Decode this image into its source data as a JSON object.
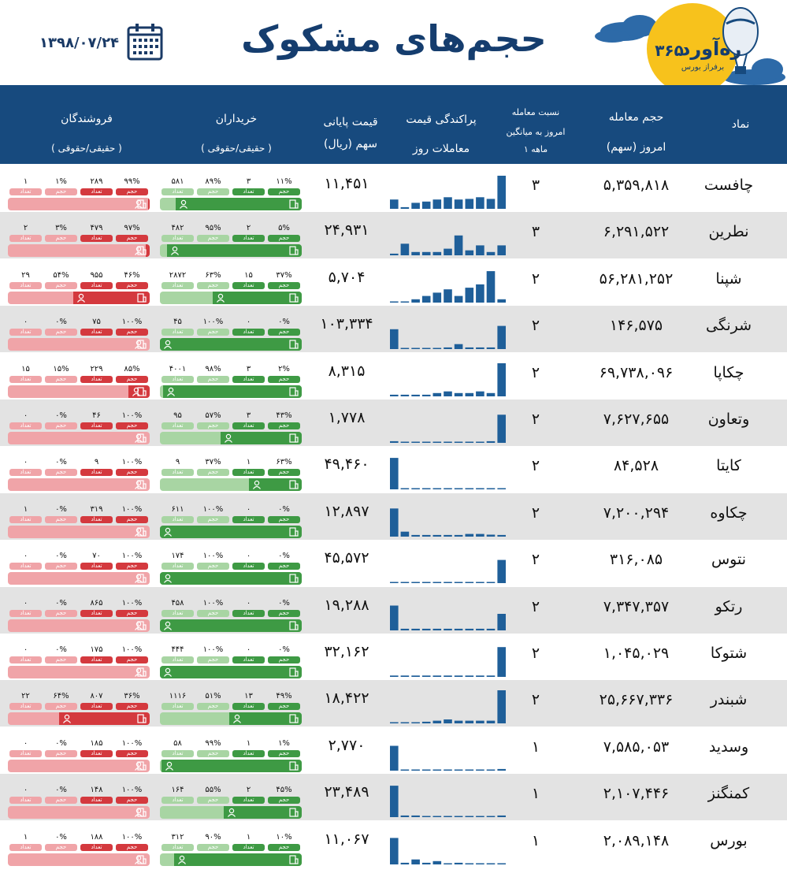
{
  "header": {
    "title": "حجم‌های مشکوک",
    "date": "۱۳۹۸/۰۷/۲۴",
    "logo_number": "۳۶۵",
    "logo_name": "ره‌آورد",
    "logo_tagline": "برفراز بورس"
  },
  "columns": {
    "symbol": "نماد",
    "volume_line1": "حجم معامله",
    "volume_line2": "امروز (سهم)",
    "ratio_line1": "نسبت معامله",
    "ratio_line2": "امروز به میانگین",
    "ratio_line3": "۱ ماهه",
    "dispersion_line1": "پراکندگی قیمت",
    "dispersion_line2": "معاملات روز",
    "price_line1": "قیمت پایانی",
    "price_line2": "سهم (ریال)",
    "buyers": "خریداران",
    "buyers_sub": "( حقیقی/حقوقی )",
    "sellers": "فروشندگان",
    "sellers_sub": "( حقیقی/حقوقی )"
  },
  "labels": {
    "volume": "حجم",
    "count": "تعداد"
  },
  "colors": {
    "header_bg": "#174a7e",
    "spark_bar": "#1f5f99",
    "buy_dark": "#3e9a44",
    "buy_light": "#a8d5a3",
    "sell_dark": "#d4393e",
    "sell_light": "#f0a4a8",
    "alt_row": "#e3e3e3"
  },
  "chart_data": {
    "type": "table",
    "rows": [
      {
        "symbol": "چافست",
        "volume": "۵,۳۵۹,۸۱۸",
        "ratio": "۳",
        "price": "۱۱,۴۵۱",
        "spark": [
          0.28,
          0.05,
          0.18,
          0.22,
          0.28,
          0.35,
          0.28,
          0.3,
          0.35,
          0.3,
          1.0
        ],
        "buy": {
          "legal_vol": "۱۱%",
          "legal_cnt": "۳",
          "real_vol": "۸۹%",
          "real_cnt": "۵۸۱",
          "real_share": 0.89
        },
        "sell": {
          "legal_vol": "۹۹%",
          "legal_cnt": "۲۸۹",
          "real_vol": "۱%",
          "real_cnt": "۱",
          "real_share": 0.01
        }
      },
      {
        "symbol": "نطرین",
        "volume": "۶,۲۹۱,۵۲۲",
        "ratio": "۳",
        "price": "۲۴,۹۳۱",
        "spark": [
          0.05,
          0.35,
          0.1,
          0.1,
          0.1,
          0.2,
          0.6,
          0.15,
          0.3,
          0.1,
          0.3
        ],
        "buy": {
          "legal_vol": "۵%",
          "legal_cnt": "۲",
          "real_vol": "۹۵%",
          "real_cnt": "۴۸۲",
          "real_share": 0.95
        },
        "sell": {
          "legal_vol": "۹۷%",
          "legal_cnt": "۴۷۹",
          "real_vol": "۳%",
          "real_cnt": "۲",
          "real_share": 0.03
        }
      },
      {
        "symbol": "شپنا",
        "volume": "۵۶,۲۸۱,۲۵۲",
        "ratio": "۲",
        "price": "۵,۷۰۴",
        "spark": [
          0.02,
          0.02,
          0.1,
          0.2,
          0.3,
          0.4,
          0.2,
          0.45,
          0.55,
          0.95,
          0.1
        ],
        "buy": {
          "legal_vol": "۳۷%",
          "legal_cnt": "۱۵",
          "real_vol": "۶۳%",
          "real_cnt": "۲۸۷۲",
          "real_share": 0.63
        },
        "sell": {
          "legal_vol": "۴۶%",
          "legal_cnt": "۹۵۵",
          "real_vol": "۵۴%",
          "real_cnt": "۲۹",
          "real_share": 0.54
        }
      },
      {
        "symbol": "شرنگی",
        "volume": "۱۴۶,۵۷۵",
        "ratio": "۲",
        "price": "۱۰۳,۳۳۴",
        "spark": [
          0.6,
          0,
          0,
          0,
          0,
          0.05,
          0.15,
          0.05,
          0.05,
          0.05,
          0.7
        ],
        "buy": {
          "legal_vol": "۰%",
          "legal_cnt": "۰",
          "real_vol": "۱۰۰%",
          "real_cnt": "۴۵",
          "real_share": 1.0
        },
        "sell": {
          "legal_vol": "۱۰۰%",
          "legal_cnt": "۷۵",
          "real_vol": "۰%",
          "real_cnt": "۰",
          "real_share": 0.0
        }
      },
      {
        "symbol": "چکاپا",
        "volume": "۶۹,۷۳۸,۰۹۶",
        "ratio": "۲",
        "price": "۸,۳۱۵",
        "spark": [
          0.05,
          0.05,
          0.05,
          0.05,
          0.1,
          0.15,
          0.1,
          0.1,
          0.15,
          0.1,
          1.0
        ],
        "buy": {
          "legal_vol": "۲%",
          "legal_cnt": "۳",
          "real_vol": "۹۸%",
          "real_cnt": "۴۰۰۱",
          "real_share": 0.98
        },
        "sell": {
          "legal_vol": "۸۵%",
          "legal_cnt": "۲۲۹",
          "real_vol": "۱۵%",
          "real_cnt": "۱۵",
          "real_share": 0.15
        }
      },
      {
        "symbol": "وتعاون",
        "volume": "۷,۶۲۷,۶۵۵",
        "ratio": "۲",
        "price": "۱,۷۷۸",
        "spark": [
          0.05,
          0.03,
          0.02,
          0.02,
          0.02,
          0.02,
          0.02,
          0.02,
          0.02,
          0.05,
          0.85
        ],
        "buy": {
          "legal_vol": "۴۳%",
          "legal_cnt": "۳",
          "real_vol": "۵۷%",
          "real_cnt": "۹۵",
          "real_share": 0.57
        },
        "sell": {
          "legal_vol": "۱۰۰%",
          "legal_cnt": "۴۶",
          "real_vol": "۰%",
          "real_cnt": "۰",
          "real_share": 0.0
        }
      },
      {
        "symbol": "کایتا",
        "volume": "۸۴,۵۲۸",
        "ratio": "۲",
        "price": "۴۹,۴۶۰",
        "spark": [
          0.95,
          0,
          0,
          0,
          0,
          0,
          0,
          0,
          0,
          0,
          0.02
        ],
        "buy": {
          "legal_vol": "۶۳%",
          "legal_cnt": "۱",
          "real_vol": "۳۷%",
          "real_cnt": "۹",
          "real_share": 0.37
        },
        "sell": {
          "legal_vol": "۱۰۰%",
          "legal_cnt": "۹",
          "real_vol": "۰%",
          "real_cnt": "۰",
          "real_share": 0.0
        }
      },
      {
        "symbol": "چکاوه",
        "volume": "۷,۲۰۰,۲۹۴",
        "ratio": "۲",
        "price": "۱۲,۸۹۷",
        "spark": [
          0.85,
          0.15,
          0.05,
          0.05,
          0.05,
          0.05,
          0.05,
          0.08,
          0.08,
          0.06,
          0.05
        ],
        "buy": {
          "legal_vol": "۰%",
          "legal_cnt": "۰",
          "real_vol": "۱۰۰%",
          "real_cnt": "۶۱۱",
          "real_share": 1.0
        },
        "sell": {
          "legal_vol": "۱۰۰%",
          "legal_cnt": "۳۱۹",
          "real_vol": "۰%",
          "real_cnt": "۱",
          "real_share": 0.0
        }
      },
      {
        "symbol": "نتوس",
        "volume": "۳۱۶,۰۸۵",
        "ratio": "۲",
        "price": "۴۵,۵۷۲",
        "spark": [
          0,
          0,
          0,
          0,
          0,
          0,
          0,
          0,
          0,
          0,
          0.7
        ],
        "buy": {
          "legal_vol": "۰%",
          "legal_cnt": "۰",
          "real_vol": "۱۰۰%",
          "real_cnt": "۱۷۴",
          "real_share": 1.0
        },
        "sell": {
          "legal_vol": "۱۰۰%",
          "legal_cnt": "۷۰",
          "real_vol": "۰%",
          "real_cnt": "۰",
          "real_share": 0.0
        }
      },
      {
        "symbol": "رتکو",
        "volume": "۷,۳۴۷,۳۵۷",
        "ratio": "۲",
        "price": "۱۹,۲۸۸",
        "spark": [
          0.75,
          0.05,
          0.05,
          0.05,
          0.05,
          0.05,
          0.05,
          0.05,
          0.05,
          0.05,
          0.5
        ],
        "buy": {
          "legal_vol": "۰%",
          "legal_cnt": "۰",
          "real_vol": "۱۰۰%",
          "real_cnt": "۴۵۸",
          "real_share": 1.0
        },
        "sell": {
          "legal_vol": "۱۰۰%",
          "legal_cnt": "۸۶۵",
          "real_vol": "۰%",
          "real_cnt": "۰",
          "real_share": 0.0
        }
      },
      {
        "symbol": "شتوکا",
        "volume": "۱,۰۴۵,۰۲۹",
        "ratio": "۲",
        "price": "۳۲,۱۶۲",
        "spark": [
          0.04,
          0.04,
          0.04,
          0.04,
          0.04,
          0.04,
          0.04,
          0.04,
          0.04,
          0.04,
          0.9
        ],
        "buy": {
          "legal_vol": "۰%",
          "legal_cnt": "۰",
          "real_vol": "۱۰۰%",
          "real_cnt": "۴۴۴",
          "real_share": 1.0
        },
        "sell": {
          "legal_vol": "۱۰۰%",
          "legal_cnt": "۱۷۵",
          "real_vol": "۰%",
          "real_cnt": "۰",
          "real_share": 0.0
        }
      },
      {
        "symbol": "شبندر",
        "volume": "۲۵,۶۶۷,۳۳۶",
        "ratio": "۲",
        "price": "۱۸,۴۲۲",
        "spark": [
          0.02,
          0.02,
          0.02,
          0.05,
          0.08,
          0.12,
          0.08,
          0.08,
          0.08,
          0.08,
          1.0
        ],
        "buy": {
          "legal_vol": "۴۹%",
          "legal_cnt": "۱۳",
          "real_vol": "۵۱%",
          "real_cnt": "۱۱۱۶",
          "real_share": 0.51
        },
        "sell": {
          "legal_vol": "۳۶%",
          "legal_cnt": "۸۰۷",
          "real_vol": "۶۴%",
          "real_cnt": "۲۲",
          "real_share": 0.64
        }
      },
      {
        "symbol": "وسدید",
        "volume": "۷,۵۸۵,۰۵۳",
        "ratio": "۱",
        "price": "۲,۷۷۰",
        "spark": [
          0.75,
          0,
          0,
          0,
          0,
          0,
          0,
          0,
          0,
          0,
          0.05
        ],
        "buy": {
          "legal_vol": "۱%",
          "legal_cnt": "۱",
          "real_vol": "۹۹%",
          "real_cnt": "۵۸",
          "real_share": 0.99
        },
        "sell": {
          "legal_vol": "۱۰۰%",
          "legal_cnt": "۱۸۵",
          "real_vol": "۰%",
          "real_cnt": "۰",
          "real_share": 0.0
        }
      },
      {
        "symbol": "کمنگنز",
        "volume": "۲,۱۰۷,۴۴۶",
        "ratio": "۱",
        "price": "۲۳,۴۸۹",
        "spark": [
          0.95,
          0.05,
          0.05,
          0.03,
          0.03,
          0.03,
          0.03,
          0.03,
          0.03,
          0.03,
          0.05
        ],
        "buy": {
          "legal_vol": "۴۵%",
          "legal_cnt": "۲",
          "real_vol": "۵۵%",
          "real_cnt": "۱۶۴",
          "real_share": 0.55
        },
        "sell": {
          "legal_vol": "۱۰۰%",
          "legal_cnt": "۱۴۸",
          "real_vol": "۰%",
          "real_cnt": "۰",
          "real_share": 0.0
        }
      },
      {
        "symbol": "بورس",
        "volume": "۲,۰۸۹,۱۴۸",
        "ratio": "۱",
        "price": "۱۱,۰۶۷",
        "spark": [
          0.8,
          0.05,
          0.15,
          0.05,
          0.1,
          0,
          0.05,
          0,
          0.02,
          0,
          0.03
        ],
        "buy": {
          "legal_vol": "۱۰%",
          "legal_cnt": "۱",
          "real_vol": "۹۰%",
          "real_cnt": "۳۱۲",
          "real_share": 0.9
        },
        "sell": {
          "legal_vol": "۱۰۰%",
          "legal_cnt": "۱۸۸",
          "real_vol": "۰%",
          "real_cnt": "۱",
          "real_share": 0.0
        }
      }
    ]
  }
}
